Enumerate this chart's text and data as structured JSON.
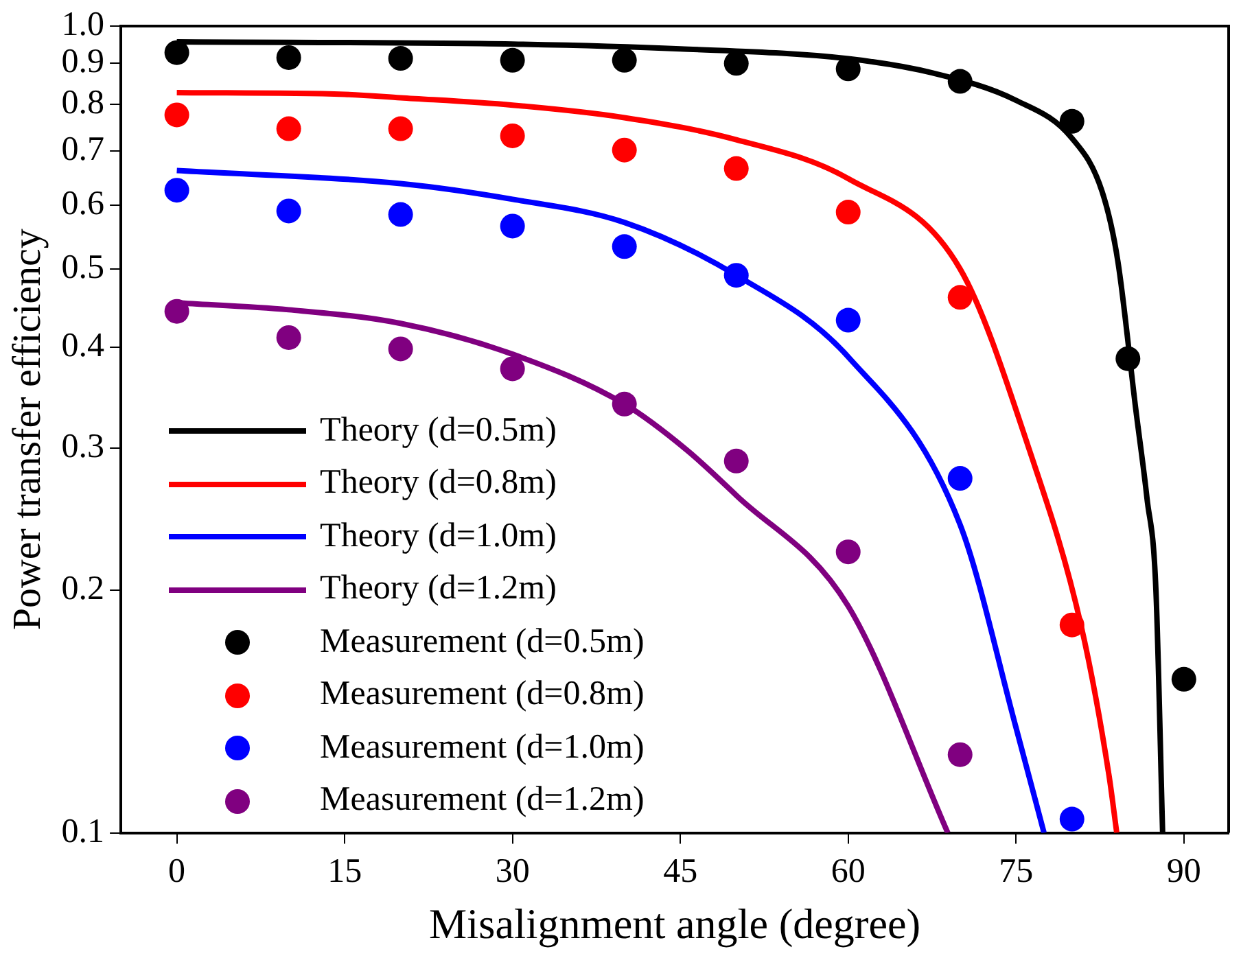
{
  "chart_data": {
    "type": "line",
    "xlabel": "Misalignment angle (degree)",
    "ylabel": "Power transfer efficiency",
    "log": "y",
    "grid": false,
    "legend": "bottom left",
    "xlim": [
      -5,
      94
    ],
    "xticks": [
      0,
      15,
      30,
      45,
      60,
      75,
      90
    ],
    "ylim": [
      0.1,
      1
    ],
    "yticks": [
      0.1,
      0.2,
      0.3,
      0.4,
      0.5,
      0.6,
      0.7,
      0.8,
      0.9,
      {
        "value": 1,
        "label": "1.0"
      }
    ],
    "series": [
      {
        "name": "Theory (d=0.5m)",
        "color": "#000000",
        "marker": "none",
        "x": [
          0,
          30,
          45,
          60,
          67.5,
          75,
          80,
          82.7,
          84.1,
          85.7,
          86.7,
          87.5,
          88.1
        ],
        "values": [
          0.956,
          0.95,
          0.937,
          0.911,
          0.875,
          0.809,
          0.726,
          0.623,
          0.511,
          0.335,
          0.26,
          0.2,
          0.1
        ]
      },
      {
        "name": "Theory (d=0.8m)",
        "color": "#ff0000",
        "marker": "none",
        "x": [
          0,
          15,
          20,
          30,
          40,
          50,
          60,
          70,
          76.2,
          80.8,
          83.3,
          84
        ],
        "values": [
          0.827,
          0.823,
          0.815,
          0.798,
          0.77,
          0.723,
          0.647,
          0.5,
          0.298,
          0.181,
          0.118,
          0.1
        ]
      },
      {
        "name": "Theory (d=1.0m)",
        "color": "#0000ff",
        "marker": "none",
        "x": [
          0,
          20,
          30,
          40,
          50,
          60,
          70,
          75,
          77.5
        ],
        "values": [
          0.662,
          0.638,
          0.61,
          0.571,
          0.491,
          0.389,
          0.241,
          0.135,
          0.1
        ]
      },
      {
        "name": "Theory (d=1.2m)",
        "color": "#800080",
        "marker": "none",
        "x": [
          0,
          10,
          20,
          30,
          40,
          45.6,
          50,
          60,
          68.9
        ],
        "values": [
          0.454,
          0.445,
          0.428,
          0.392,
          0.34,
          0.298,
          0.262,
          0.191,
          0.1
        ]
      },
      {
        "type": "scatter",
        "name": "Measurement (d=0.5m)",
        "color": "#000000",
        "marker": "circle",
        "x": [
          0,
          10,
          20,
          30,
          40,
          50,
          60,
          70,
          80,
          85,
          90
        ],
        "values": [
          0.927,
          0.914,
          0.912,
          0.907,
          0.907,
          0.899,
          0.885,
          0.854,
          0.762,
          0.387,
          0.155
        ]
      },
      {
        "type": "scatter",
        "name": "Measurement (d=0.8m)",
        "color": "#ff0000",
        "marker": "circle",
        "x": [
          0,
          10,
          20,
          30,
          40,
          50,
          60,
          70,
          80
        ],
        "values": [
          0.776,
          0.746,
          0.746,
          0.731,
          0.702,
          0.666,
          0.588,
          0.461,
          0.181
        ]
      },
      {
        "type": "scatter",
        "name": "Measurement (d=1.0m)",
        "color": "#0000ff",
        "marker": "circle",
        "x": [
          0,
          10,
          20,
          30,
          40,
          50,
          60,
          70,
          80
        ],
        "values": [
          0.626,
          0.59,
          0.584,
          0.565,
          0.533,
          0.491,
          0.432,
          0.275,
          0.104
        ]
      },
      {
        "type": "scatter",
        "name": "Measurement (d=1.2m)",
        "color": "#800080",
        "marker": "circle",
        "x": [
          0,
          10,
          20,
          30,
          40,
          50,
          60,
          70
        ],
        "values": [
          0.443,
          0.411,
          0.398,
          0.376,
          0.34,
          0.289,
          0.223,
          0.125
        ]
      }
    ]
  }
}
